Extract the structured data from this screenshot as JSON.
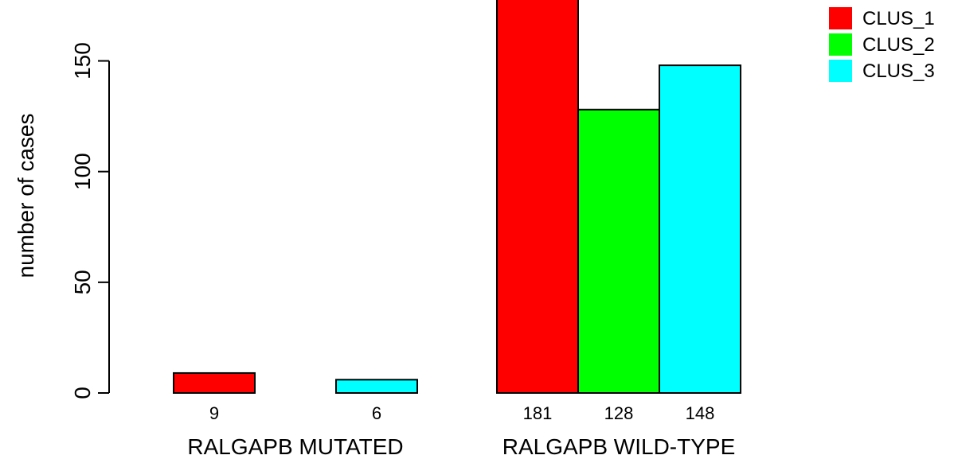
{
  "chart_data": {
    "type": "bar",
    "ylabel": "number of cases",
    "ylim": [
      0,
      181
    ],
    "yticks": [
      0,
      50,
      100,
      150
    ],
    "grid": false,
    "legend_position": "top-right",
    "groups": [
      "RALGAPB MUTATED",
      "RALGAPB WILD-TYPE"
    ],
    "series": [
      {
        "name": "CLUS_1",
        "color": "#ff0000",
        "values": [
          9,
          181
        ]
      },
      {
        "name": "CLUS_2",
        "color": "#00ff00",
        "values": [
          0,
          128
        ]
      },
      {
        "name": "CLUS_3",
        "color": "#00ffff",
        "values": [
          6,
          148
        ]
      }
    ],
    "bar_labels": [
      [
        "9",
        "",
        "6"
      ],
      [
        "181",
        "128",
        "148"
      ]
    ]
  }
}
